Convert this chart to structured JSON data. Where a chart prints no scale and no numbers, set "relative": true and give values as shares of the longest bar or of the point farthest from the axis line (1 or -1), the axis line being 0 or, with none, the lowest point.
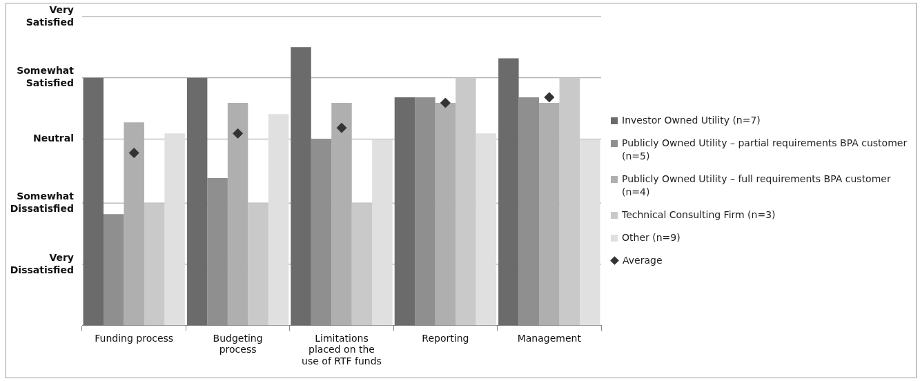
{
  "chart_data": {
    "type": "bar",
    "relative": true,
    "categories": [
      "Funding process",
      "Budgeting process",
      "Limitations placed on the use of RTF funds",
      "Reporting",
      "Management"
    ],
    "series": [
      {
        "name": "Investor Owned Utility (n=7)",
        "color": "#6b6b6b",
        "values": [
          0.89,
          0.89,
          1,
          0.82,
          0.96
        ]
      },
      {
        "name": "Publicly Owned Utility – partial requirements BPA customer (n=5)",
        "color": "#8f8f8f",
        "values": [
          0.4,
          0.53,
          0.67,
          0.82,
          0.82
        ]
      },
      {
        "name": "Publicly Owned Utility – full requirements BPA customer (n=4)",
        "color": "#afafaf",
        "values": [
          0.73,
          0.8,
          0.8,
          0.8,
          0.8
        ]
      },
      {
        "name": "Technical Consulting Firm (n=3)",
        "color": "#c9c9c9",
        "values": [
          0.44,
          0.44,
          0.44,
          0.89,
          0.89
        ]
      },
      {
        "name": "Other (n=9)",
        "color": "#e0e0e0",
        "values": [
          0.69,
          0.76,
          0.67,
          0.69,
          0.67
        ]
      },
      {
        "name": "Average",
        "type": "scatter",
        "color": "#333333",
        "x": [
          "Funding process",
          "Budgeting process",
          "Limitations placed on the use of RTF funds",
          "Reporting",
          "Management"
        ],
        "values": [
          0.62,
          0.69,
          0.71,
          0.8,
          0.82
        ]
      }
    ],
    "ref_lines": [
      {
        "axis": "y",
        "value": 1.11,
        "label": "Very Satisfied",
        "color": "#999999"
      },
      {
        "axis": "y",
        "value": 0.89,
        "label": "Somewhat Satisfied",
        "color": "#999999"
      },
      {
        "axis": "y",
        "value": 0.67,
        "label": "Neutral",
        "color": "#999999"
      },
      {
        "axis": "y",
        "value": 0.44,
        "label": "Somewhat Dissatisfied",
        "color": "#999999"
      },
      {
        "axis": "y",
        "value": 0.22,
        "label": "Very Dissatisfied",
        "color": "#999999"
      }
    ],
    "legend": "right",
    "marker": "diamond"
  }
}
